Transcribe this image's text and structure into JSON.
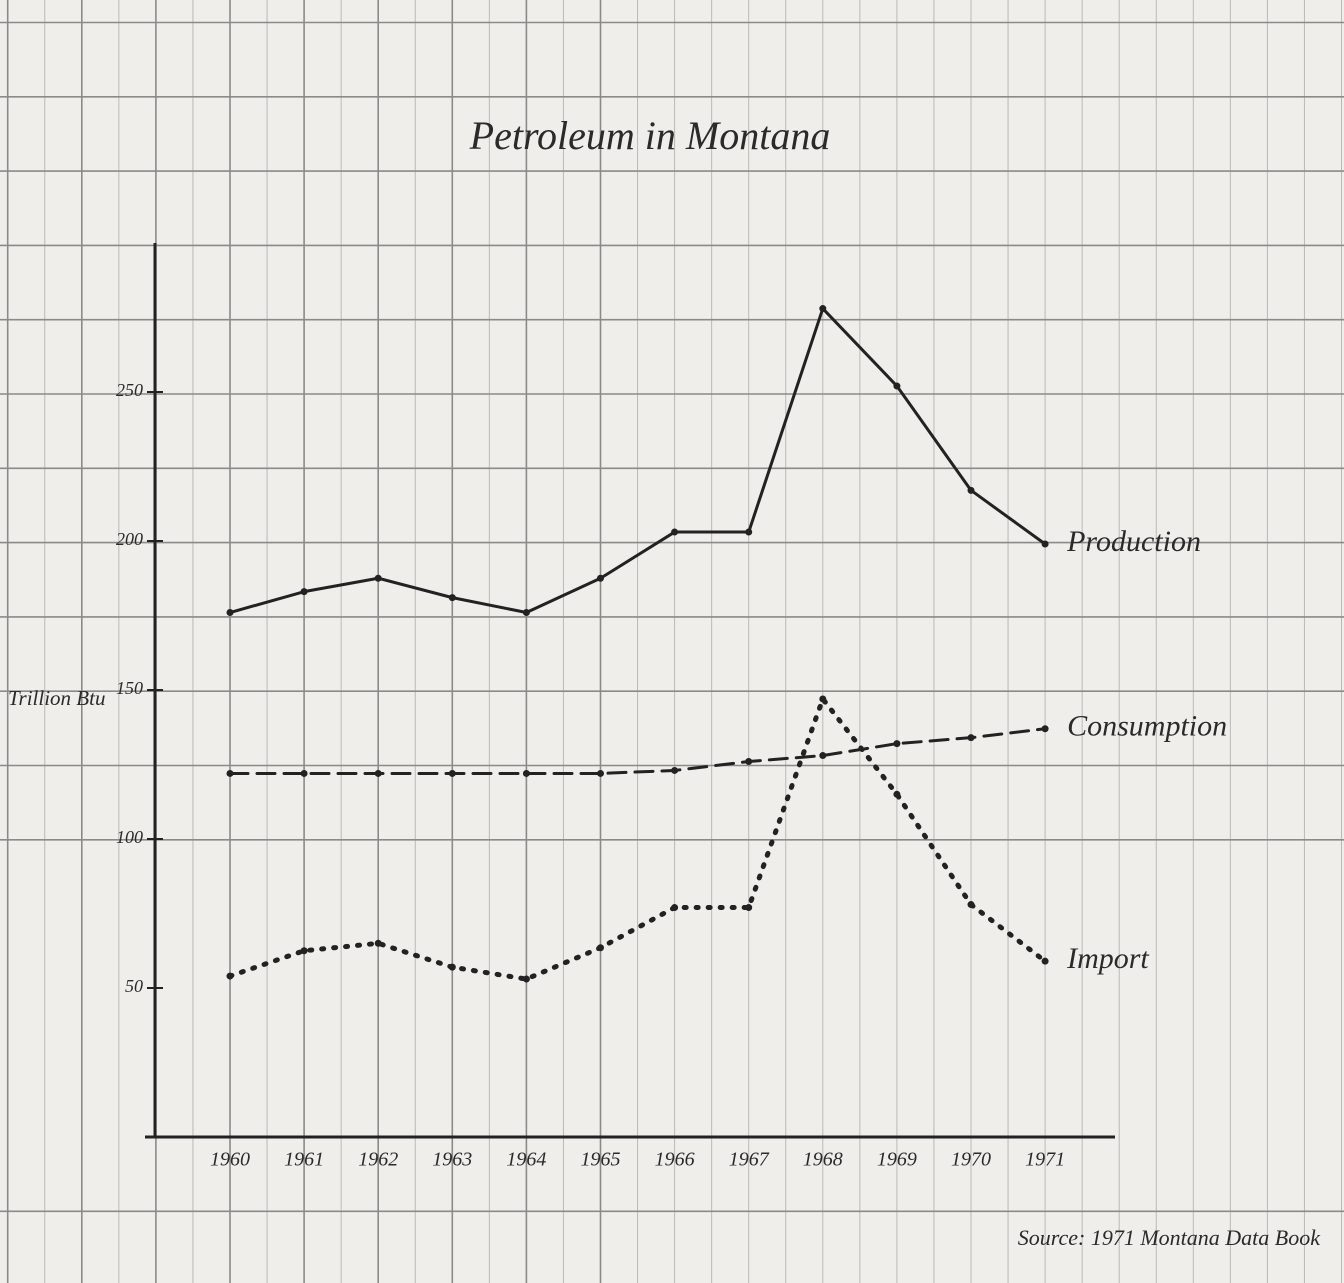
{
  "chart_data": {
    "type": "line",
    "title": "Petroleum in Montana",
    "y_label": "Trillion Btu",
    "annotation": "Source: 1971 Montana Data Book",
    "categories": [
      "1960",
      "1961",
      "1962",
      "1963",
      "1964",
      "1965",
      "1966",
      "1967",
      "1968",
      "1969",
      "1970",
      "1971"
    ],
    "series": [
      {
        "name": "Production",
        "color": "#222222",
        "dash": "solid",
        "values": [
          176,
          183,
          187.5,
          181,
          176,
          187.5,
          203,
          203,
          278,
          252,
          217,
          199
        ]
      },
      {
        "name": "Consumption",
        "color": "#222222",
        "dash": "dashed",
        "values": [
          122,
          122,
          122,
          122,
          122,
          122,
          123,
          126,
          128,
          132,
          134,
          137
        ]
      },
      {
        "name": "Import",
        "color": "#222222",
        "dash": "dotted",
        "values": [
          54,
          62.5,
          65,
          57,
          53,
          63.5,
          77,
          77,
          147,
          115,
          78,
          59
        ]
      }
    ],
    "ylim": [
      0,
      300
    ],
    "yticks": [
      50,
      100,
      150,
      200,
      250
    ],
    "legend": "line-end"
  }
}
